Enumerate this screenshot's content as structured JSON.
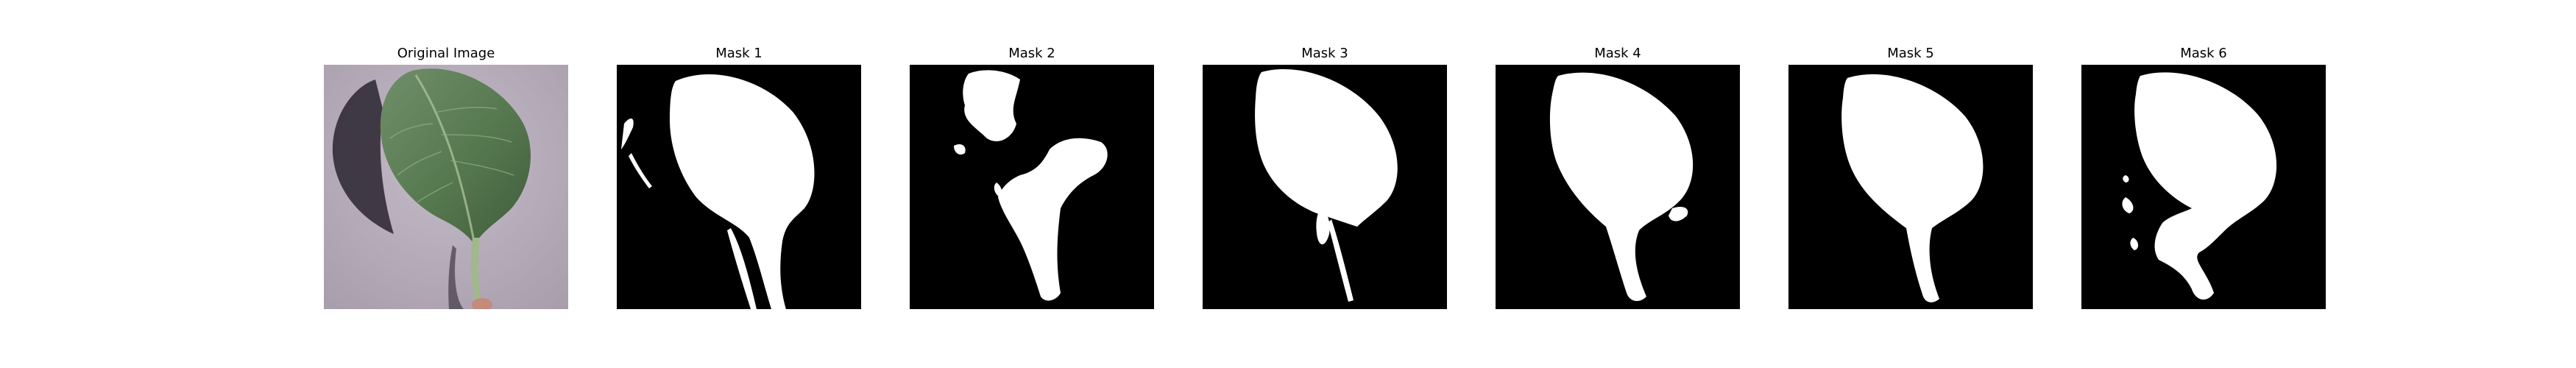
{
  "figure": {
    "panels": [
      {
        "title": "Original Image",
        "kind": "photo",
        "icon": "leaf-photo"
      },
      {
        "title": "Mask 1",
        "kind": "mask",
        "icon": "segmentation-mask"
      },
      {
        "title": "Mask 2",
        "kind": "mask",
        "icon": "segmentation-mask"
      },
      {
        "title": "Mask 3",
        "kind": "mask",
        "icon": "segmentation-mask"
      },
      {
        "title": "Mask 4",
        "kind": "mask",
        "icon": "segmentation-mask"
      },
      {
        "title": "Mask 5",
        "kind": "mask",
        "icon": "segmentation-mask"
      },
      {
        "title": "Mask 6",
        "kind": "mask",
        "icon": "segmentation-mask"
      }
    ],
    "colors": {
      "background": "#ffffff",
      "mask_background": "#000000",
      "mask_foreground": "#ffffff",
      "photo_background": "#b8aebb",
      "leaf": "#5c7d5a"
    }
  }
}
